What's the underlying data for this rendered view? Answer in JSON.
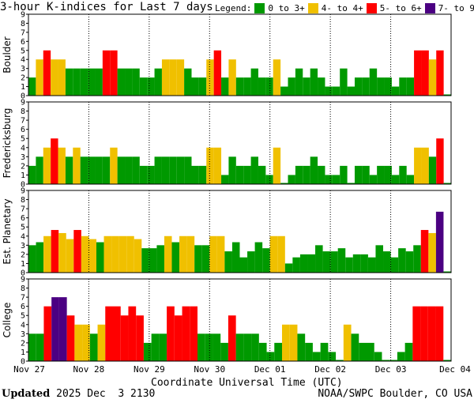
{
  "header": {
    "title": "3-hour K-indices for Last 7 days",
    "legend_label": "Legend:",
    "legend": [
      {
        "label": "0 to 3+",
        "color": "#009900"
      },
      {
        "label": "4- to 4+",
        "color": "#f0c000"
      },
      {
        "label": "5- to 6+",
        "color": "#ff0000"
      },
      {
        "label": "7- to 9",
        "color": "#4b0082"
      }
    ]
  },
  "footer": {
    "updated_label": "Updated",
    "updated_value": " 2025 Dec  3 2130",
    "source": "NOAA/SWPC Boulder, CO USA"
  },
  "chart_data": {
    "type": "bar",
    "title": "3-hour K-indices for Last 7 days",
    "xlabel": "Coordinate Universal Time (UTC)",
    "x_ticks": [
      "Nov 27",
      "Nov 28",
      "Nov 29",
      "Nov 30",
      "Dec 01",
      "Dec 02",
      "Dec 03",
      "Dec 04"
    ],
    "y_ticks": [
      "0",
      "1",
      "2",
      "3",
      "4",
      "5",
      "6",
      "7",
      "8",
      "9"
    ],
    "ylim": [
      0,
      9
    ],
    "series": [
      {
        "name": "Boulder",
        "values": [
          2,
          4,
          5,
          4,
          4,
          3,
          3,
          3,
          3,
          3,
          5,
          5,
          3,
          3,
          3,
          2,
          2,
          3,
          4,
          4,
          4,
          3,
          2,
          2,
          4,
          5,
          2,
          4,
          2,
          2,
          3,
          2,
          2,
          4,
          1,
          2,
          3,
          2,
          3,
          2,
          1,
          1,
          3,
          1,
          2,
          2,
          3,
          2,
          2,
          1,
          2,
          2,
          5,
          5,
          4,
          5,
          0
        ]
      },
      {
        "name": "Fredericksburg",
        "values": [
          2,
          3,
          4,
          5,
          4,
          3,
          4,
          3,
          3,
          3,
          3,
          4,
          3,
          3,
          3,
          2,
          2,
          3,
          3,
          3,
          3,
          3,
          2,
          2,
          4,
          4,
          1,
          3,
          2,
          2,
          3,
          2,
          1,
          4,
          0,
          1,
          2,
          2,
          3,
          2,
          1,
          1,
          2,
          0,
          2,
          2,
          1,
          2,
          2,
          1,
          2,
          1,
          4,
          4,
          3,
          5,
          0
        ]
      },
      {
        "name": "Est. Planetary",
        "values": [
          3,
          3.33,
          4,
          4.67,
          4.33,
          3.67,
          4.67,
          4,
          3.67,
          3.33,
          4,
          4,
          4,
          4,
          3.67,
          2.67,
          2.67,
          3,
          4,
          3.33,
          4,
          4,
          3,
          3,
          4,
          4,
          2.33,
          3.33,
          1.67,
          2.33,
          3.33,
          2.67,
          4,
          4,
          1,
          1.67,
          2,
          2,
          3,
          2.33,
          2.33,
          2.67,
          1.67,
          2,
          2,
          1.67,
          3,
          2.33,
          1.67,
          2.67,
          2.33,
          3,
          4.67,
          4.33,
          6.67,
          0
        ]
      },
      {
        "name": "College",
        "values": [
          3,
          3,
          6,
          7,
          7,
          5,
          4,
          4,
          3,
          4,
          6,
          6,
          5,
          6,
          5,
          2,
          3,
          3,
          6,
          5,
          6,
          6,
          3,
          3,
          3,
          2,
          5,
          3,
          3,
          3,
          2,
          1,
          2,
          4,
          4,
          3,
          2,
          1,
          2,
          1,
          0,
          4,
          3,
          2,
          2,
          1,
          0,
          0,
          1,
          2,
          6,
          6,
          6,
          6,
          0
        ]
      }
    ],
    "colors": {
      "quiet": "#009900",
      "active": "#f0c000",
      "storm": "#ff0000",
      "severe": "#4b0082"
    }
  }
}
